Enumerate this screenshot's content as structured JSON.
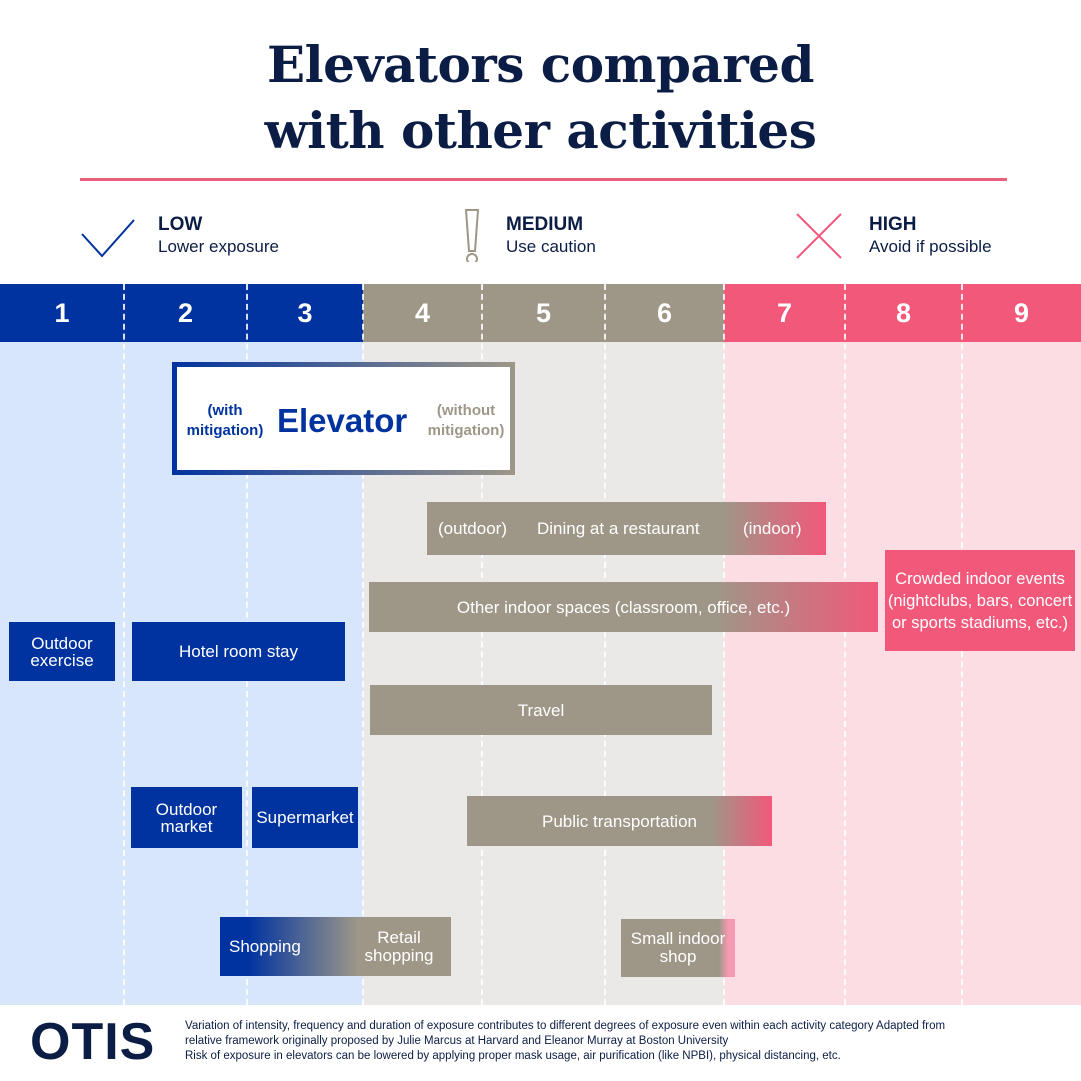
{
  "title": {
    "line1": "Elevators compared",
    "line2": "with other activities"
  },
  "legend": {
    "low": {
      "title": "LOW",
      "desc": "Lower exposure",
      "icon": "check-icon"
    },
    "medium": {
      "title": "MEDIUM",
      "desc": "Use caution",
      "icon": "exclamation-icon"
    },
    "high": {
      "title": "HIGH",
      "desc": "Avoid if possible",
      "icon": "x-icon"
    }
  },
  "scale": {
    "levels": [
      "1",
      "2",
      "3",
      "4",
      "5",
      "6",
      "7",
      "8",
      "9"
    ]
  },
  "colors": {
    "low": "#0033a0",
    "medium": "#9e9788",
    "high": "#f2587a",
    "low_bg": "#d8e6fb",
    "medium_bg": "#ebe9e7",
    "high_bg": "#fcdde4",
    "navy": "#0b1d45"
  },
  "elevator": {
    "with_mitigation": "(with mitigation)",
    "label": "Elevator",
    "without_mitigation": "(without mitigation)"
  },
  "activities": {
    "dining": {
      "outdoor": "(outdoor)",
      "label": "Dining at a restaurant",
      "indoor": "(indoor)"
    },
    "crowded_events": "Crowded indoor events (nightclubs, bars, concert or sports stadiums, etc.)",
    "other_indoor": "Other indoor spaces (classroom, office, etc.)",
    "outdoor_exercise": "Outdoor exercise",
    "hotel_room": "Hotel room stay",
    "travel": "Travel",
    "outdoor_market": "Outdoor market",
    "supermarket": "Supermarket",
    "public_transport": "Public transportation",
    "shopping": "Shopping",
    "retail_shopping": "Retail shopping",
    "small_indoor_shop": "Small indoor shop"
  },
  "footer": {
    "logo": "OTIS",
    "line1": "Variation of intensity, frequency and duration of exposure contributes to different degrees of exposure even within each activity category Adapted from",
    "line2": "relative framework originally proposed by Julie Marcus at Harvard and Eleanor Murray at Boston University",
    "line3": "Risk of exposure in elevators can be lowered by applying proper mask usage, air purification (like NPBI), physical distancing, etc."
  }
}
